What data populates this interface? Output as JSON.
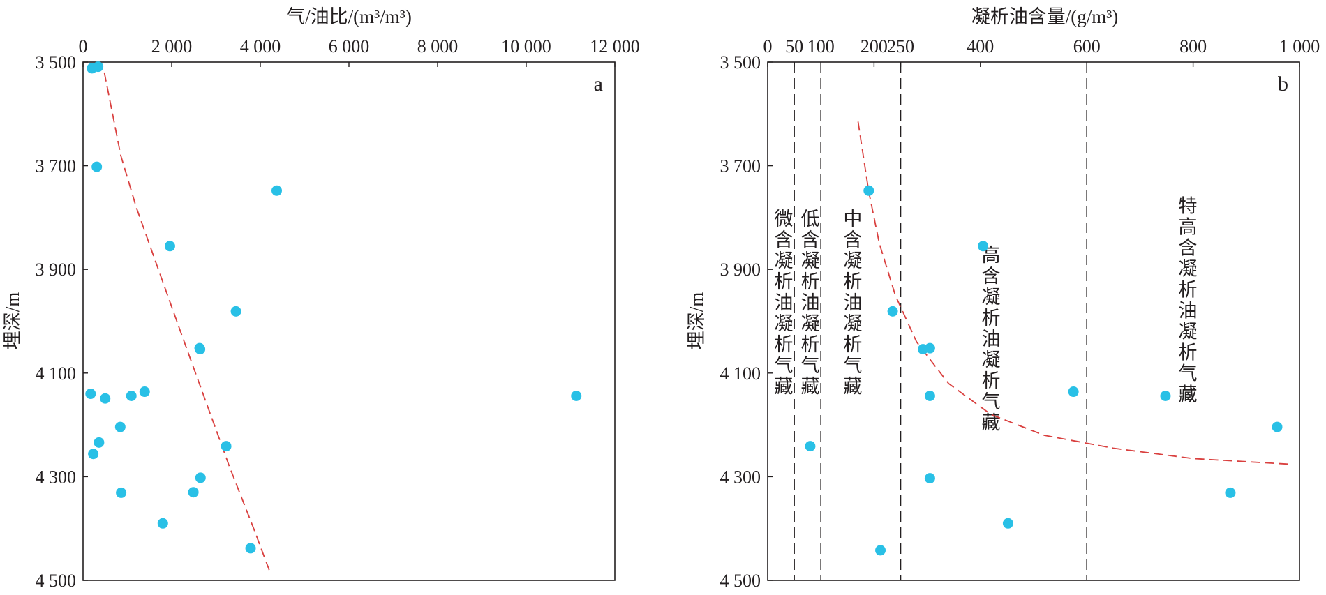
{
  "chart_data": [
    {
      "type": "scatter",
      "panel_label": "a",
      "xlabel": "气/油比/(m³/m³)",
      "ylabel": "埋深/m",
      "x_axis_position": "top",
      "y_axis_inverted": true,
      "xlim": [
        0,
        12000
      ],
      "ylim": [
        3500,
        4500
      ],
      "xticks": [
        0,
        2000,
        4000,
        6000,
        8000,
        10000,
        12000
      ],
      "xtick_labels": [
        "0",
        "2 000",
        "4 000",
        "6 000",
        "8 000",
        "10 000",
        "12 000"
      ],
      "yticks": [
        3500,
        3700,
        3900,
        4100,
        4300,
        4500
      ],
      "ytick_labels": [
        "3 500",
        "3 700",
        "3 900",
        "4 100",
        "4 300",
        "4 500"
      ],
      "grid": false,
      "point_color": "#29c0e6",
      "trend_color": "#d9403f",
      "points": [
        {
          "x": 200,
          "y": 3512
        },
        {
          "x": 340,
          "y": 3509
        },
        {
          "x": 310,
          "y": 3702
        },
        {
          "x": 4370,
          "y": 3748
        },
        {
          "x": 1960,
          "y": 3855
        },
        {
          "x": 3450,
          "y": 3981
        },
        {
          "x": 2630,
          "y": 4052
        },
        {
          "x": 2640,
          "y": 4054
        },
        {
          "x": 170,
          "y": 4140
        },
        {
          "x": 500,
          "y": 4149
        },
        {
          "x": 1090,
          "y": 4144
        },
        {
          "x": 1390,
          "y": 4136
        },
        {
          "x": 11130,
          "y": 4144
        },
        {
          "x": 840,
          "y": 4204
        },
        {
          "x": 360,
          "y": 4234
        },
        {
          "x": 230,
          "y": 4256
        },
        {
          "x": 3230,
          "y": 4241
        },
        {
          "x": 2650,
          "y": 4302
        },
        {
          "x": 2490,
          "y": 4330
        },
        {
          "x": 860,
          "y": 4331
        },
        {
          "x": 1800,
          "y": 4390
        },
        {
          "x": 3780,
          "y": 4438
        }
      ],
      "trend_line": {
        "style": "dashed",
        "points": [
          {
            "x": 480,
            "y": 3520
          },
          {
            "x": 850,
            "y": 3680
          },
          {
            "x": 1200,
            "y": 3780
          },
          {
            "x": 1700,
            "y": 3900
          },
          {
            "x": 2200,
            "y": 4020
          },
          {
            "x": 2750,
            "y": 4150
          },
          {
            "x": 3300,
            "y": 4280
          },
          {
            "x": 3850,
            "y": 4400
          },
          {
            "x": 4200,
            "y": 4480
          }
        ]
      }
    },
    {
      "type": "scatter",
      "panel_label": "b",
      "xlabel": "凝析油含量/(g/m³)",
      "ylabel": "埋深/m",
      "x_axis_position": "top",
      "y_axis_inverted": true,
      "xlim": [
        0,
        1000
      ],
      "ylim": [
        3500,
        4500
      ],
      "xticks": [
        0,
        50,
        100,
        200,
        250,
        400,
        600,
        800,
        1000
      ],
      "xtick_labels": [
        "0",
        "50",
        "100",
        "200",
        "250",
        "400",
        "600",
        "800",
        "1 000"
      ],
      "yticks": [
        3500,
        3700,
        3900,
        4100,
        4300,
        4500
      ],
      "ytick_labels": [
        "3 500",
        "3 700",
        "3 900",
        "4 100",
        "4 300",
        "4 500"
      ],
      "grid": false,
      "point_color": "#29c0e6",
      "trend_color": "#d9403f",
      "boundaries": [
        50,
        100,
        250,
        600
      ],
      "zones": [
        {
          "text": "微含凝析油凝析气藏",
          "x": 30,
          "top_depth": 3815
        },
        {
          "text": "低含凝析油凝析气藏",
          "x": 80,
          "top_depth": 3815
        },
        {
          "text": "中含凝析油凝析气藏",
          "x": 160,
          "top_depth": 3815
        },
        {
          "text": "高含凝析油凝析气藏",
          "x": 420,
          "top_depth": 3885
        },
        {
          "text": "特高含凝析油凝析气藏",
          "x": 790,
          "top_depth": 3790
        }
      ],
      "points": [
        {
          "x": 190,
          "y": 3748
        },
        {
          "x": 405,
          "y": 3855
        },
        {
          "x": 235,
          "y": 3981
        },
        {
          "x": 292,
          "y": 4054
        },
        {
          "x": 305,
          "y": 4052
        },
        {
          "x": 305,
          "y": 4144
        },
        {
          "x": 575,
          "y": 4136
        },
        {
          "x": 748,
          "y": 4144
        },
        {
          "x": 958,
          "y": 4204
        },
        {
          "x": 80,
          "y": 4241
        },
        {
          "x": 305,
          "y": 4303
        },
        {
          "x": 870,
          "y": 4331
        },
        {
          "x": 452,
          "y": 4390
        },
        {
          "x": 212,
          "y": 4442
        }
      ],
      "trend_line": {
        "style": "dashed",
        "points": [
          {
            "x": 170,
            "y": 3615
          },
          {
            "x": 190,
            "y": 3750
          },
          {
            "x": 210,
            "y": 3850
          },
          {
            "x": 240,
            "y": 3950
          },
          {
            "x": 280,
            "y": 4040
          },
          {
            "x": 340,
            "y": 4120
          },
          {
            "x": 420,
            "y": 4180
          },
          {
            "x": 520,
            "y": 4220
          },
          {
            "x": 650,
            "y": 4245
          },
          {
            "x": 800,
            "y": 4265
          },
          {
            "x": 985,
            "y": 4276
          }
        ]
      }
    }
  ]
}
